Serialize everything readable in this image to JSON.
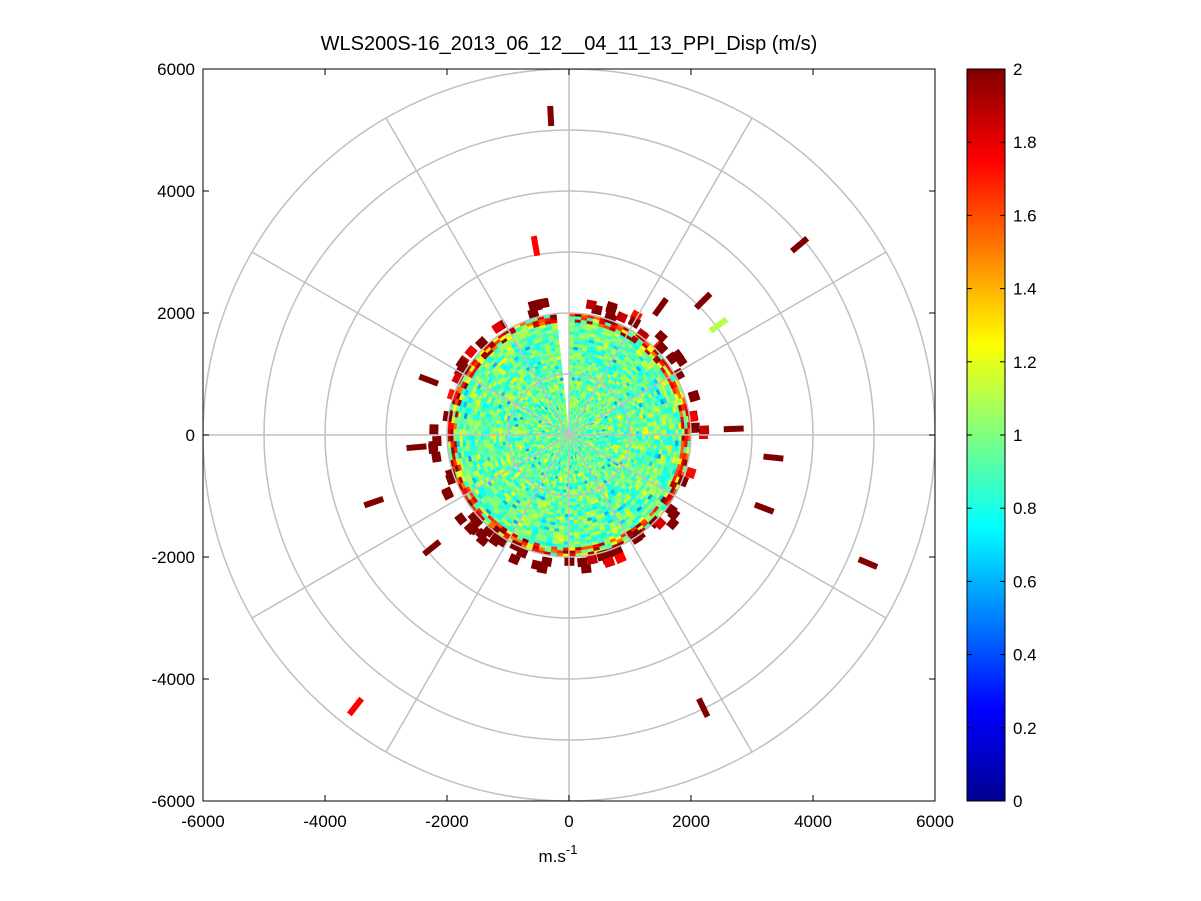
{
  "chart_data": {
    "type": "heatmap",
    "subtype": "polar-ppi-scan",
    "title": "WLS200S-16_2013_06_12__04_11_13_PPI_Disp (m/s)",
    "xlabel": "m.s",
    "xlabel_superscript": "-1",
    "ylabel": "",
    "xlim": [
      -6000,
      6000
    ],
    "ylim": [
      -6000,
      6000
    ],
    "xticks": [
      -6000,
      -4000,
      -2000,
      0,
      2000,
      4000,
      6000
    ],
    "yticks": [
      6000,
      4000,
      2000,
      0,
      -2000,
      -4000,
      -6000
    ],
    "xtick_labels": [
      "-6000",
      "-4000",
      "-2000",
      "0",
      "2000",
      "4000",
      "6000"
    ],
    "ytick_labels": [
      "6000",
      "4000",
      "2000",
      "0",
      "-2000",
      "-4000",
      "-6000"
    ],
    "polar_grid": {
      "range_rings": [
        1000,
        2000,
        3000,
        4000,
        5000,
        6000
      ],
      "spoke_angles_deg": [
        0,
        30,
        60,
        90,
        120,
        150,
        180,
        210,
        240,
        270,
        300,
        330
      ],
      "grid_color": "#c0c0c0"
    },
    "grid": true,
    "colormap": "jet",
    "colorbar": {
      "min": 0,
      "max": 2,
      "ticks": [
        2,
        1.8,
        1.6,
        1.4,
        1.2,
        1,
        0.8,
        0.6,
        0.4,
        0.2,
        0
      ],
      "tick_labels": [
        "2",
        "1.8",
        "1.6",
        "1.4",
        "1.2",
        "1",
        "0.8",
        "0.6",
        "0.4",
        "0.2",
        "0"
      ],
      "position": "right"
    },
    "field": {
      "description_values": "dispersion values within approx. 2000 m range mostly 0.8-1.1, edge values 1.6-2",
      "core_radius": 2000,
      "core_value_range": [
        0.75,
        1.15
      ],
      "edge_value_range": [
        1.5,
        2.0
      ],
      "gap_azimuth_deg": [
        352,
        360
      ]
    },
    "outliers": [
      {
        "x": -300,
        "y": 5230,
        "value": 2.0
      },
      {
        "x": -550,
        "y": 3100,
        "value": 1.75
      },
      {
        "x": 3780,
        "y": 3120,
        "value": 2.0
      },
      {
        "x": 2450,
        "y": 1800,
        "value": 1.1
      },
      {
        "x": -3200,
        "y": -1100,
        "value": 2.0
      },
      {
        "x": 3350,
        "y": -370,
        "value": 2.0
      },
      {
        "x": 3200,
        "y": -1200,
        "value": 2.0
      },
      {
        "x": 4900,
        "y": -2100,
        "value": 2.0
      },
      {
        "x": -3500,
        "y": -4450,
        "value": 1.75
      },
      {
        "x": 2200,
        "y": -4470,
        "value": 2.0
      },
      {
        "x": 2700,
        "y": 100,
        "value": 2.0
      },
      {
        "x": 2200,
        "y": 2200,
        "value": 2.0
      },
      {
        "x": 1500,
        "y": 2100,
        "value": 2.0
      },
      {
        "x": -2300,
        "y": 900,
        "value": 2.0
      },
      {
        "x": -2500,
        "y": -200,
        "value": 2.0
      },
      {
        "x": -2250,
        "y": -1850,
        "value": 2.0
      }
    ]
  }
}
